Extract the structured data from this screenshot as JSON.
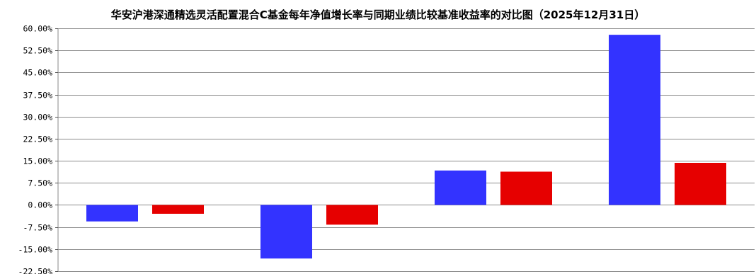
{
  "chart_data": {
    "type": "bar",
    "title": "华安沪港深通精选灵活配置混合C基金每年净值增长率与同期业绩比较基准收益率的对比图（2025年12月31日）",
    "xlabel": "",
    "ylabel": "",
    "ylim": [
      -22.5,
      60
    ],
    "yticks": [
      60,
      52.5,
      45,
      37.5,
      30,
      22.5,
      15,
      7.5,
      0,
      -7.5,
      -15,
      -22.5
    ],
    "ytick_labels": [
      "60.00%",
      "52.50%",
      "45.00%",
      "37.50%",
      "30.00%",
      "22.50%",
      "15.00%",
      "7.50%",
      "0.00%",
      "-7.50%",
      "-15.00%",
      "-22.50%"
    ],
    "grid": true,
    "categories": [
      "",
      "",
      "",
      ""
    ],
    "series": [
      {
        "values": [
          -5.6,
          -18.2,
          11.7,
          57.8
        ],
        "color": "#3333ff"
      },
      {
        "values": [
          -3.0,
          -6.7,
          11.3,
          14.3
        ],
        "color": "#e60000"
      }
    ]
  }
}
